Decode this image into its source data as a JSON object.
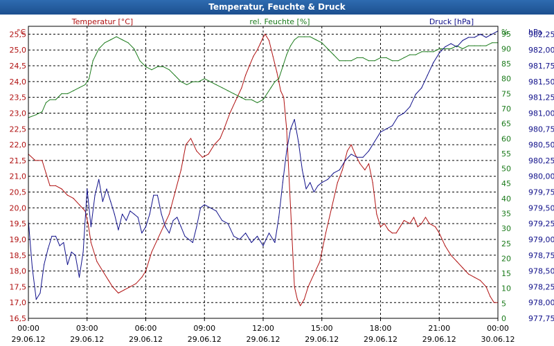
{
  "window": {
    "title": "Temperatur, Feuchte & Druck"
  },
  "chart_data": {
    "type": "line",
    "title": "Temperatur, Feuchte & Druck",
    "grid": true,
    "x": {
      "domain": [
        0,
        24
      ],
      "ticks": [
        {
          "pos": 0,
          "time": "00:00",
          "date": "29.06.12"
        },
        {
          "pos": 3,
          "time": "03:00",
          "date": "29.06.12"
        },
        {
          "pos": 6,
          "time": "06:00",
          "date": "29.06.12"
        },
        {
          "pos": 9,
          "time": "09:00",
          "date": "29.06.12"
        },
        {
          "pos": 12,
          "time": "12:00",
          "date": "29.06.12"
        },
        {
          "pos": 15,
          "time": "15:00",
          "date": "29.06.12"
        },
        {
          "pos": 18,
          "time": "18:00",
          "date": "29.06.12"
        },
        {
          "pos": 21,
          "time": "21:00",
          "date": "29.06.12"
        },
        {
          "pos": 24,
          "time": "00:00",
          "date": "30.06.12"
        }
      ]
    },
    "axes": {
      "temperature": {
        "unit": "°C",
        "label": "Temperatur [°C]",
        "ylim": [
          16.5,
          25.75
        ],
        "color": "#b01010",
        "ticks": [
          "16,5",
          "17,0",
          "17,5",
          "18,0",
          "18,5",
          "19,0",
          "19,5",
          "20,0",
          "20,5",
          "21,0",
          "21,5",
          "22,0",
          "22,5",
          "23,0",
          "23,5",
          "24,0",
          "24,5",
          "25,0",
          "25,5"
        ]
      },
      "humidity": {
        "unit": "%",
        "label": "rel. Feuchte [%]",
        "ylim": [
          0,
          97.5
        ],
        "color": "#1a7a1a",
        "ticks": [
          "0",
          "5",
          "10",
          "15",
          "20",
          "25",
          "30",
          "35",
          "40",
          "45",
          "50",
          "55",
          "60",
          "65",
          "70",
          "75",
          "80",
          "85",
          "90",
          "95"
        ]
      },
      "pressure": {
        "unit": "hPa",
        "label": "Druck [hPa]",
        "ylim": [
          977.75,
          982.375
        ],
        "color": "#10108a",
        "ticks": [
          "977,75",
          "978,00",
          "978,25",
          "978,50",
          "978,75",
          "979,00",
          "979,25",
          "979,50",
          "979,75",
          "980,00",
          "980,25",
          "980,50",
          "980,75",
          "981,00",
          "981,25",
          "981,50",
          "981,75",
          "982,00",
          "982,25"
        ]
      }
    },
    "series": [
      {
        "name": "Temperatur [°C]",
        "axis": "temperature",
        "color": "#b01010",
        "x": [
          0.0,
          0.35,
          0.7,
          0.9,
          1.1,
          1.4,
          1.7,
          2.0,
          2.3,
          2.6,
          2.9,
          3.05,
          3.2,
          3.5,
          3.8,
          4.1,
          4.3,
          4.6,
          4.9,
          5.2,
          5.5,
          5.8,
          6.0,
          6.3,
          6.6,
          6.9,
          7.2,
          7.5,
          7.8,
          8.05,
          8.3,
          8.6,
          8.9,
          9.2,
          9.5,
          9.8,
          10.0,
          10.3,
          10.6,
          10.9,
          11.1,
          11.3,
          11.5,
          11.7,
          11.85,
          12.0,
          12.1,
          12.3,
          12.5,
          12.7,
          12.9,
          13.05,
          13.2,
          13.4,
          13.6,
          13.75,
          13.9,
          14.1,
          14.3,
          14.6,
          14.9,
          15.2,
          15.5,
          15.8,
          16.05,
          16.3,
          16.5,
          16.7,
          16.95,
          17.2,
          17.4,
          17.6,
          17.8,
          18.0,
          18.2,
          18.4,
          18.6,
          18.8,
          19.0,
          19.2,
          19.5,
          19.7,
          19.9,
          20.1,
          20.3,
          20.5,
          20.8,
          21.0,
          21.3,
          21.6,
          21.9,
          22.2,
          22.5,
          22.8,
          23.1,
          23.4,
          23.6,
          23.8,
          24.0
        ],
        "y": [
          21.7,
          21.5,
          21.5,
          21.1,
          20.7,
          20.7,
          20.6,
          20.4,
          20.3,
          20.1,
          19.9,
          19.5,
          18.9,
          18.3,
          18.0,
          17.7,
          17.5,
          17.3,
          17.4,
          17.5,
          17.6,
          17.8,
          18.0,
          18.6,
          19.0,
          19.4,
          19.8,
          20.5,
          21.2,
          22.0,
          22.2,
          21.8,
          21.6,
          21.7,
          22.0,
          22.2,
          22.5,
          23.0,
          23.4,
          23.8,
          24.2,
          24.5,
          24.8,
          25.0,
          25.2,
          25.4,
          25.5,
          25.3,
          24.8,
          24.3,
          23.7,
          23.5,
          22.5,
          20.0,
          17.5,
          17.1,
          16.9,
          17.1,
          17.5,
          17.9,
          18.3,
          19.2,
          20.0,
          20.8,
          21.2,
          21.8,
          22.0,
          21.7,
          21.4,
          21.2,
          21.4,
          20.8,
          19.8,
          19.4,
          19.5,
          19.3,
          19.2,
          19.2,
          19.4,
          19.6,
          19.5,
          19.7,
          19.4,
          19.5,
          19.7,
          19.5,
          19.4,
          19.2,
          18.8,
          18.5,
          18.3,
          18.1,
          17.9,
          17.8,
          17.7,
          17.5,
          17.2,
          17.0,
          17.0
        ]
      },
      {
        "name": "rel. Feuchte [%]",
        "axis": "humidity",
        "color": "#1a7a1a",
        "x": [
          0.0,
          0.4,
          0.7,
          0.9,
          1.1,
          1.4,
          1.7,
          2.0,
          2.3,
          2.6,
          2.9,
          3.1,
          3.3,
          3.6,
          3.9,
          4.2,
          4.5,
          4.8,
          5.1,
          5.4,
          5.7,
          6.0,
          6.3,
          6.6,
          6.9,
          7.2,
          7.5,
          7.8,
          8.1,
          8.4,
          8.7,
          9.0,
          9.3,
          9.6,
          9.9,
          10.2,
          10.5,
          10.8,
          11.1,
          11.4,
          11.7,
          12.0,
          12.2,
          12.4,
          12.6,
          12.8,
          13.0,
          13.2,
          13.4,
          13.6,
          13.8,
          14.1,
          14.4,
          14.7,
          15.0,
          15.3,
          15.6,
          15.9,
          16.2,
          16.5,
          16.8,
          17.1,
          17.4,
          17.7,
          18.0,
          18.3,
          18.6,
          18.9,
          19.2,
          19.5,
          19.8,
          20.1,
          20.4,
          20.7,
          21.0,
          21.3,
          21.6,
          21.9,
          22.2,
          22.5,
          22.8,
          23.1,
          23.4,
          23.7,
          24.0
        ],
        "y": [
          67,
          68,
          69,
          72,
          73,
          73,
          75,
          75,
          76,
          77,
          78,
          80,
          86,
          90,
          92,
          93,
          94,
          93,
          92,
          90,
          86,
          84,
          83,
          84,
          84,
          83,
          81,
          79,
          78,
          79,
          79,
          80,
          79,
          78,
          77,
          76,
          75,
          74,
          73,
          73,
          72,
          73,
          75,
          77,
          79,
          80,
          84,
          88,
          91,
          93,
          94,
          94,
          94,
          93,
          92,
          90,
          88,
          86,
          86,
          86,
          87,
          87,
          86,
          86,
          87,
          87,
          86,
          86,
          87,
          88,
          88,
          89,
          89,
          89,
          90,
          90,
          90,
          91,
          90,
          91,
          91,
          91,
          91,
          92,
          92
        ]
      },
      {
        "name": "Druck [hPa]",
        "axis": "pressure",
        "color": "#10108a",
        "x": [
          0.0,
          0.2,
          0.4,
          0.6,
          0.8,
          1.0,
          1.2,
          1.4,
          1.6,
          1.8,
          2.0,
          2.2,
          2.4,
          2.6,
          2.8,
          3.0,
          3.2,
          3.4,
          3.6,
          3.8,
          4.0,
          4.2,
          4.4,
          4.6,
          4.8,
          5.0,
          5.2,
          5.4,
          5.6,
          5.8,
          6.0,
          6.2,
          6.4,
          6.6,
          6.8,
          7.0,
          7.2,
          7.4,
          7.6,
          7.8,
          8.0,
          8.2,
          8.4,
          8.6,
          8.8,
          9.0,
          9.3,
          9.6,
          9.9,
          10.2,
          10.5,
          10.8,
          11.1,
          11.4,
          11.7,
          12.0,
          12.3,
          12.6,
          12.8,
          13.0,
          13.2,
          13.4,
          13.6,
          13.8,
          14.0,
          14.2,
          14.4,
          14.6,
          14.8,
          15.0,
          15.3,
          15.6,
          15.9,
          16.2,
          16.5,
          16.8,
          17.1,
          17.4,
          17.7,
          18.0,
          18.3,
          18.6,
          18.9,
          19.2,
          19.5,
          19.8,
          20.1,
          20.4,
          20.7,
          21.0,
          21.3,
          21.6,
          21.9,
          22.2,
          22.5,
          22.8,
          23.1,
          23.4,
          23.7,
          24.0
        ],
        "y": [
          979.3,
          978.55,
          978.05,
          978.15,
          978.6,
          978.85,
          979.05,
          979.05,
          978.9,
          978.95,
          978.6,
          978.8,
          978.75,
          978.4,
          978.8,
          979.8,
          979.2,
          979.7,
          979.95,
          979.6,
          979.8,
          979.6,
          979.4,
          979.15,
          979.4,
          979.3,
          979.45,
          979.4,
          979.35,
          979.1,
          979.2,
          979.4,
          979.7,
          979.7,
          979.4,
          979.2,
          979.1,
          979.3,
          979.35,
          979.2,
          979.05,
          979.0,
          978.95,
          979.2,
          979.5,
          979.55,
          979.5,
          979.45,
          979.3,
          979.25,
          979.05,
          979.0,
          979.1,
          978.95,
          979.05,
          978.9,
          979.1,
          978.95,
          979.35,
          979.9,
          980.4,
          980.75,
          980.9,
          980.55,
          980.1,
          979.8,
          979.9,
          979.75,
          979.85,
          979.9,
          979.95,
          980.05,
          980.1,
          980.25,
          980.35,
          980.3,
          980.3,
          980.4,
          980.55,
          980.7,
          980.75,
          980.8,
          980.95,
          981.0,
          981.1,
          981.3,
          981.4,
          981.6,
          981.8,
          981.95,
          982.05,
          982.1,
          982.05,
          982.15,
          982.2,
          982.2,
          982.25,
          982.2,
          982.25,
          982.3
        ]
      }
    ]
  }
}
